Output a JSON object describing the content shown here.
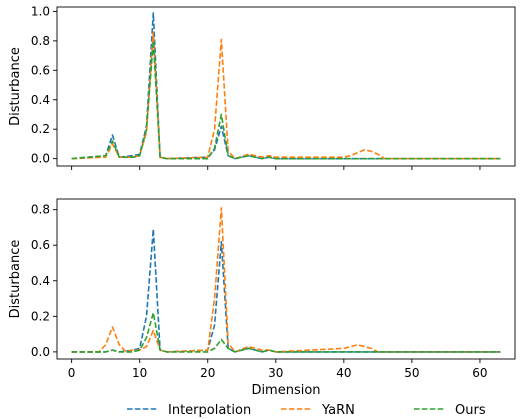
{
  "chart_data": [
    {
      "type": "line",
      "xlabel": "",
      "ylabel": "Disturbance",
      "xlim": [
        -2.15,
        65.15
      ],
      "ylim": [
        -0.05,
        1.03
      ],
      "xticks": [
        0,
        10,
        20,
        30,
        40,
        50,
        60
      ],
      "xtick_labels_shown": false,
      "yticks": [
        0.0,
        0.2,
        0.4,
        0.6,
        0.8,
        1.0
      ],
      "ytick_labels": [
        "0.0",
        "0.2",
        "0.4",
        "0.6",
        "0.8",
        "1.0"
      ],
      "series": [
        {
          "name": "Interpolation",
          "color": "#1f77b4",
          "x": [
            0,
            5,
            6,
            7,
            9,
            10,
            11,
            12,
            13,
            14,
            20,
            21,
            22,
            23,
            24,
            26,
            27,
            28,
            29,
            30,
            35,
            40,
            45,
            50,
            63
          ],
          "y": [
            0.0,
            0.02,
            0.16,
            0.01,
            0.02,
            0.03,
            0.22,
            0.99,
            0.01,
            0.0,
            0.01,
            0.06,
            0.22,
            0.02,
            0.0,
            0.02,
            0.01,
            0.0,
            0.01,
            0.0,
            0.0,
            0.0,
            0.0,
            0.0,
            0.0
          ]
        },
        {
          "name": "YaRN",
          "color": "#ff7f0e",
          "x": [
            0,
            5,
            6,
            7,
            9,
            10,
            11,
            12,
            13,
            14,
            20,
            21,
            22,
            23,
            24,
            26,
            27,
            28,
            29,
            30,
            35,
            40,
            41,
            42,
            43,
            44,
            45,
            46,
            50,
            63
          ],
          "y": [
            0.0,
            0.01,
            0.1,
            0.01,
            0.01,
            0.02,
            0.18,
            0.86,
            0.01,
            0.0,
            0.01,
            0.2,
            0.81,
            0.05,
            0.0,
            0.03,
            0.02,
            0.01,
            0.02,
            0.01,
            0.01,
            0.01,
            0.02,
            0.04,
            0.06,
            0.05,
            0.03,
            0.0,
            0.0,
            0.0
          ]
        },
        {
          "name": "Ours",
          "color": "#2ca02c",
          "x": [
            0,
            5,
            6,
            7,
            9,
            10,
            11,
            12,
            13,
            14,
            20,
            21,
            22,
            23,
            24,
            26,
            27,
            28,
            29,
            30,
            35,
            40,
            45,
            50,
            63
          ],
          "y": [
            0.0,
            0.02,
            0.12,
            0.01,
            0.01,
            0.02,
            0.2,
            0.8,
            0.01,
            0.0,
            0.0,
            0.07,
            0.3,
            0.02,
            0.0,
            0.02,
            0.01,
            0.0,
            0.01,
            0.0,
            0.0,
            0.0,
            0.0,
            0.0,
            0.0
          ]
        }
      ]
    },
    {
      "type": "line",
      "xlabel": "Dimension",
      "ylabel": "Disturbance",
      "xlim": [
        -2.15,
        65.15
      ],
      "ylim": [
        -0.04,
        0.86
      ],
      "xticks": [
        0,
        10,
        20,
        30,
        40,
        50,
        60
      ],
      "xtick_labels_shown": true,
      "xtick_labels": [
        "0",
        "10",
        "20",
        "30",
        "40",
        "50",
        "60"
      ],
      "yticks": [
        0.0,
        0.2,
        0.4,
        0.6,
        0.8
      ],
      "ytick_labels": [
        "0.0",
        "0.2",
        "0.4",
        "0.6",
        "0.8"
      ],
      "series": [
        {
          "name": "Interpolation",
          "color": "#1f77b4",
          "x": [
            0,
            5,
            6,
            7,
            9,
            10,
            11,
            12,
            13,
            14,
            20,
            21,
            22,
            23,
            24,
            26,
            27,
            28,
            29,
            30,
            35,
            40,
            45,
            50,
            63
          ],
          "y": [
            0.0,
            0.0,
            0.01,
            0.0,
            0.01,
            0.02,
            0.2,
            0.69,
            0.01,
            0.0,
            0.01,
            0.15,
            0.62,
            0.02,
            0.0,
            0.02,
            0.01,
            0.0,
            0.01,
            0.0,
            0.0,
            0.0,
            0.0,
            0.0,
            0.0
          ]
        },
        {
          "name": "YaRN",
          "color": "#ff7f0e",
          "x": [
            0,
            4,
            5,
            6,
            7,
            8,
            9,
            10,
            11,
            12,
            13,
            14,
            20,
            21,
            22,
            23,
            24,
            26,
            27,
            28,
            29,
            30,
            35,
            40,
            41,
            42,
            43,
            44,
            45,
            50,
            63
          ],
          "y": [
            0.0,
            0.0,
            0.04,
            0.14,
            0.04,
            0.0,
            0.01,
            0.01,
            0.03,
            0.12,
            0.01,
            0.0,
            0.01,
            0.3,
            0.81,
            0.05,
            0.0,
            0.03,
            0.02,
            0.01,
            0.01,
            0.0,
            0.01,
            0.02,
            0.03,
            0.04,
            0.03,
            0.02,
            0.0,
            0.0,
            0.0
          ]
        },
        {
          "name": "Ours",
          "color": "#2ca02c",
          "x": [
            0,
            5,
            6,
            7,
            9,
            10,
            11,
            12,
            13,
            14,
            20,
            21,
            22,
            23,
            24,
            26,
            27,
            28,
            29,
            30,
            35,
            40,
            45,
            50,
            63
          ],
          "y": [
            0.0,
            0.0,
            0.01,
            0.0,
            0.0,
            0.01,
            0.08,
            0.22,
            0.01,
            0.0,
            0.0,
            0.02,
            0.07,
            0.02,
            0.0,
            0.02,
            0.01,
            0.0,
            0.01,
            0.0,
            0.0,
            0.0,
            0.0,
            0.0,
            0.0
          ]
        }
      ]
    }
  ],
  "legend": {
    "placement": "bottom-center",
    "entries": [
      {
        "name": "Interpolation",
        "color": "#1f77b4"
      },
      {
        "name": "YaRN",
        "color": "#ff7f0e"
      },
      {
        "name": "Ours",
        "color": "#2ca02c"
      }
    ]
  }
}
